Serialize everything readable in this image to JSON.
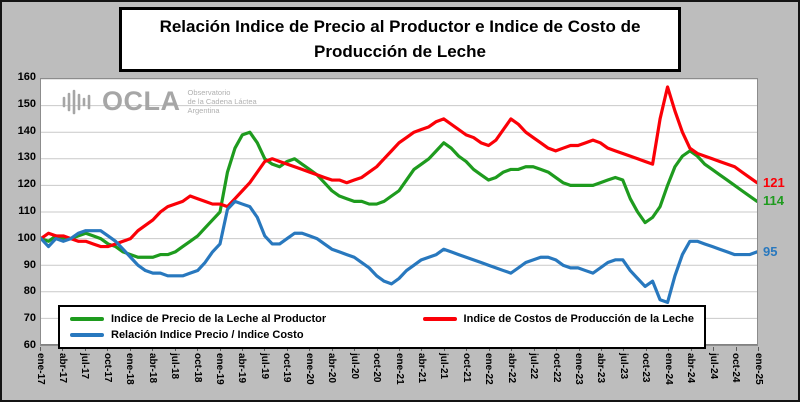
{
  "title": "Relación Indice de Precio al Productor e Indice de Costo de Producción de Leche",
  "watermark": {
    "name": "OCLA",
    "subtitle_lines": [
      "Observatorio",
      "de la Cadena Láctea",
      "Argentina"
    ]
  },
  "chart_data": {
    "type": "line",
    "title": "Relación Indice de Precio al Productor e Indice de Costo de Producción de Leche",
    "grid": true,
    "legend_position": "bottom-left-inside",
    "ylim": [
      60,
      160
    ],
    "y_ticks": [
      60,
      70,
      80,
      90,
      100,
      110,
      120,
      130,
      140,
      150,
      160
    ],
    "x_tick_step": 3,
    "x_tick_labels": [
      "ene-17",
      "abr-17",
      "jul-17",
      "oct-17",
      "ene-18",
      "abr-18",
      "jul-18",
      "oct-18",
      "ene-19",
      "abr-19",
      "jul-19",
      "oct-19",
      "ene-20",
      "abr-20",
      "jul-20",
      "oct-20",
      "ene-21",
      "abr-21",
      "jul-21",
      "oct-21",
      "ene-22",
      "abr-22",
      "jul-22",
      "oct-22",
      "ene-23",
      "abr-23",
      "jul-23",
      "oct-23",
      "ene-24",
      "abr-24",
      "jul-24",
      "oct-24",
      "ene-25"
    ],
    "series": [
      {
        "id": "precio",
        "name": "Indice de Precio de la Leche al Productor",
        "color": "#1e9b1e",
        "end_label": "114",
        "values": [
          100,
          99,
          101,
          100,
          100,
          101,
          102,
          101,
          100,
          98,
          97,
          95,
          94,
          93,
          93,
          93,
          94,
          94,
          95,
          97,
          99,
          101,
          104,
          107,
          110,
          125,
          134,
          139,
          140,
          136,
          130,
          128,
          127,
          129,
          130,
          128,
          126,
          124,
          121,
          118,
          116,
          115,
          114,
          114,
          113,
          113,
          114,
          116,
          118,
          122,
          126,
          128,
          130,
          133,
          136,
          134,
          131,
          129,
          126,
          124,
          122,
          123,
          125,
          126,
          126,
          127,
          127,
          126,
          125,
          123,
          121,
          120,
          120,
          120,
          120,
          121,
          122,
          123,
          122,
          115,
          110,
          106,
          108,
          112,
          120,
          127,
          131,
          133,
          131,
          128,
          126,
          124,
          122,
          120,
          118,
          116,
          114
        ]
      },
      {
        "id": "costos",
        "name": "Indice de Costos de Producción de la Leche",
        "color": "#fb0007",
        "end_label": "121",
        "values": [
          100,
          102,
          101,
          101,
          100,
          99,
          99,
          98,
          97,
          97,
          98,
          99,
          100,
          103,
          105,
          107,
          110,
          112,
          113,
          114,
          116,
          115,
          114,
          113,
          113,
          112,
          115,
          118,
          121,
          125,
          129,
          130,
          129,
          128,
          127,
          126,
          125,
          124,
          123,
          122,
          122,
          121,
          122,
          123,
          125,
          127,
          130,
          133,
          136,
          138,
          140,
          141,
          142,
          144,
          145,
          143,
          141,
          139,
          138,
          136,
          135,
          137,
          141,
          145,
          143,
          140,
          138,
          136,
          134,
          133,
          134,
          135,
          135,
          136,
          137,
          136,
          134,
          133,
          132,
          131,
          130,
          129,
          128,
          145,
          157,
          148,
          140,
          134,
          132,
          131,
          130,
          129,
          128,
          127,
          125,
          123,
          121
        ]
      },
      {
        "id": "relacion",
        "name": "Relación Indice Precio / Indice Costo",
        "color": "#2878be",
        "end_label": "95",
        "values": [
          100,
          97,
          100,
          99,
          100,
          102,
          103,
          103,
          103,
          101,
          99,
          96,
          93,
          90,
          88,
          87,
          87,
          86,
          86,
          86,
          87,
          88,
          91,
          95,
          98,
          111,
          114,
          113,
          112,
          108,
          101,
          98,
          98,
          100,
          102,
          102,
          101,
          100,
          98,
          96,
          95,
          94,
          93,
          91,
          89,
          86,
          84,
          83,
          85,
          88,
          90,
          92,
          93,
          94,
          96,
          95,
          94,
          93,
          92,
          91,
          90,
          89,
          88,
          87,
          89,
          91,
          92,
          93,
          93,
          92,
          90,
          89,
          89,
          88,
          87,
          89,
          91,
          92,
          92,
          88,
          85,
          82,
          84,
          77,
          76,
          86,
          94,
          99,
          99,
          98,
          97,
          96,
          95,
          94,
          94,
          94,
          95
        ]
      }
    ]
  }
}
